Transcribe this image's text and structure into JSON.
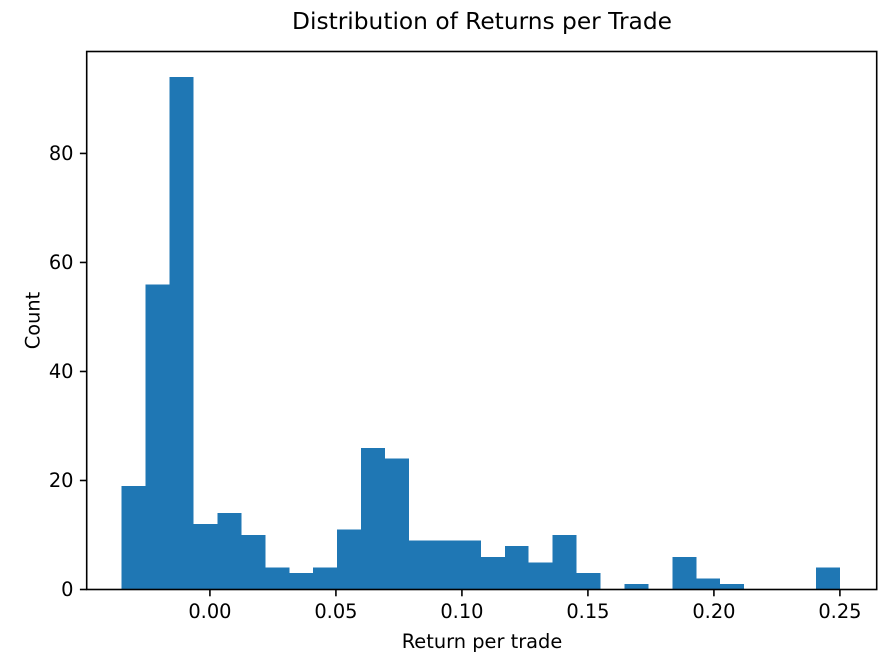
{
  "chart_data": {
    "type": "bar",
    "subtype": "histogram",
    "title": "Distribution of Returns per Trade",
    "xlabel": "Return per trade",
    "ylabel": "Count",
    "bar_color": "#1f77b4",
    "axis_color": "#000000",
    "background_color": "#ffffff",
    "n_bins": 30,
    "bin_start": -0.035,
    "bin_width": 0.0095,
    "bin_end": 0.25,
    "counts": [
      19,
      56,
      94,
      12,
      14,
      10,
      4,
      3,
      4,
      11,
      26,
      24,
      9,
      9,
      9,
      6,
      8,
      5,
      10,
      3,
      0,
      1,
      0,
      6,
      2,
      1,
      0,
      0,
      0,
      4
    ],
    "xticks": {
      "values": [
        0.0,
        0.05,
        0.1,
        0.15,
        0.2,
        0.25
      ],
      "labels": [
        "0.00",
        "0.05",
        "0.10",
        "0.15",
        "0.20",
        "0.25"
      ]
    },
    "yticks": {
      "values": [
        0,
        20,
        40,
        60,
        80
      ],
      "labels": [
        "0",
        "20",
        "40",
        "60",
        "80"
      ]
    },
    "xlim": [
      -0.0489,
      0.2646
    ],
    "ylim": [
      0,
      98.7
    ],
    "grid": false,
    "legend": false
  }
}
